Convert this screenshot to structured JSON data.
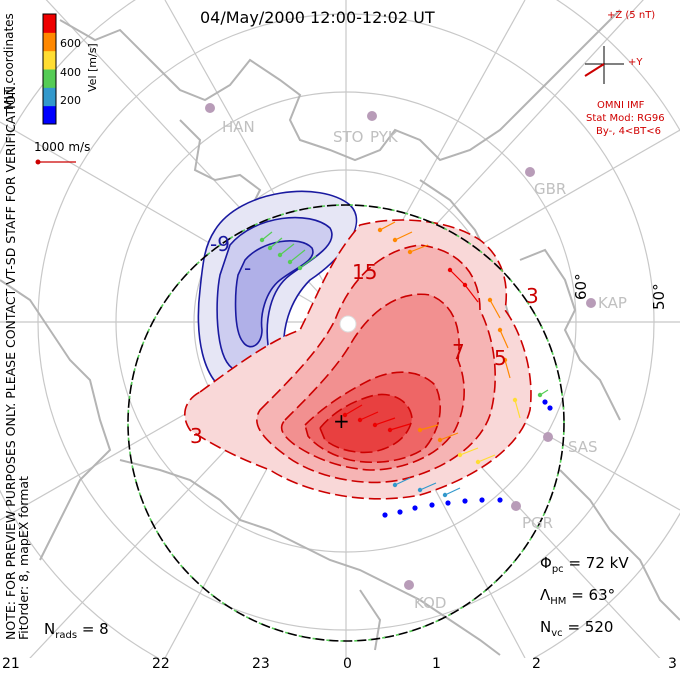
{
  "title": "04/May/2000 12:00-12:02 UT",
  "colorbar": {
    "ticks": [
      "600",
      "400",
      "200"
    ],
    "label": "Vel [m/s]",
    "colors": [
      "#0000ff",
      "#3399cc",
      "#55cc55",
      "#ffdd33",
      "#ff8800",
      "#ee0000"
    ]
  },
  "coords_label": "MLT coordinates",
  "ref_vector_label": "1000 m/s",
  "note_line1": "NOTE: FOR PREVIEW PURPOSES ONLY. PLEASE CONTACT VT-SD STAFF FOR VERIFICATION.",
  "note_line2": "FitOrder: 8, mapEX format",
  "imf": {
    "bz_label": "+Z (5 nT)",
    "by_label": "+Y",
    "source": "OMNI IMF",
    "model": "Stat Mod: RG96",
    "condition": "By-, 4<BT<6"
  },
  "latitude_labels": [
    "60°",
    "50°"
  ],
  "stations": [
    "HAN",
    "STO",
    "PYK",
    "GBR",
    "KAP",
    "SAS",
    "PGR",
    "KOD"
  ],
  "contour_labels": [
    "-9",
    "-",
    "15",
    "3",
    "3",
    "7",
    "5",
    "+"
  ],
  "stats": {
    "phi_pc": "= 72 kV",
    "lambda_hm": "= 63°",
    "n_vc": "= 520",
    "n_rads": "= 8"
  },
  "mlt_labels": [
    "21",
    "22",
    "23",
    "0",
    "1",
    "2",
    "3"
  ],
  "colors": {
    "positive": "#ee0000",
    "negative": "#1a1aa0",
    "hmb": "#000000",
    "grid": "#c8c8c8"
  }
}
